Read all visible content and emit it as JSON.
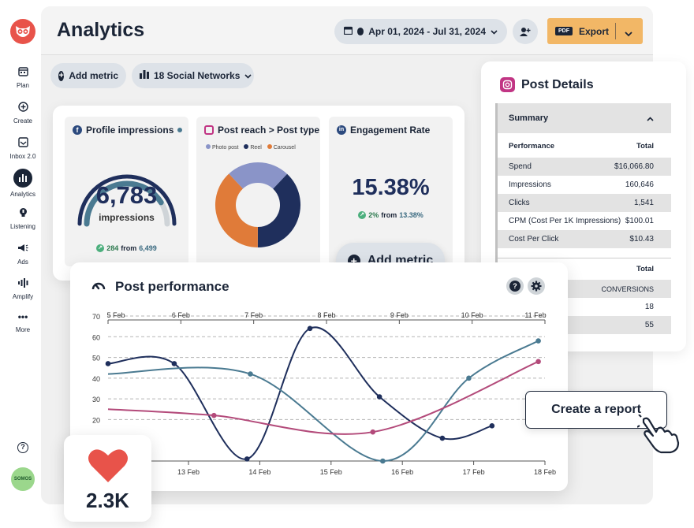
{
  "sidebar": {
    "items": [
      {
        "label": "Plan",
        "icon": "calendar-icon"
      },
      {
        "label": "Create",
        "icon": "plus-circle-icon"
      },
      {
        "label": "Inbox 2.0",
        "icon": "inbox-icon"
      },
      {
        "label": "Analytics",
        "icon": "bar-chart-icon"
      },
      {
        "label": "Listening",
        "icon": "lightbulb-icon"
      },
      {
        "label": "Ads",
        "icon": "megaphone-icon"
      },
      {
        "label": "Amplify",
        "icon": "amplify-icon"
      },
      {
        "label": "More",
        "icon": "more-dots-icon"
      }
    ],
    "avatar": "SOMOS"
  },
  "header": {
    "title": "Analytics",
    "date_range": "Apr 01, 2024 - Jul 31, 2024",
    "export_label": "Export",
    "pdf_badge": "PDF"
  },
  "toolbar": {
    "add_metric": "Add metric",
    "networks": "18 Social Networks"
  },
  "tiles": {
    "impressions": {
      "title": "Profile impressions",
      "value": "6,783",
      "unit": "impressions",
      "delta": "284",
      "from_word": "from",
      "from_value": "6,499",
      "gauge_fraction": 0.82
    },
    "reach": {
      "title": "Post reach > Post type",
      "legend": [
        "Photo post",
        "Reel",
        "Carousel"
      ],
      "colors": [
        "#8a94c8",
        "#1f2f5c",
        "#e07b39"
      ],
      "shares": [
        0.24,
        0.38,
        0.38
      ]
    },
    "engagement": {
      "title": "Engagement Rate",
      "value": "15.38%",
      "delta": "2%",
      "from_word": "from",
      "from_value": "13.38%"
    },
    "add_metric_big": "Add metric"
  },
  "post_details": {
    "title": "Post Details",
    "summary_label": "Summary",
    "col_left": "Performance",
    "col_right": "Total",
    "rows": [
      {
        "label": "Spend",
        "value": "$16,066.80"
      },
      {
        "label": "Impressions",
        "value": "160,646"
      },
      {
        "label": "Clicks",
        "value": "1,541"
      },
      {
        "label": "CPM (Cost Per 1K Impressions)",
        "value": "$100.01"
      },
      {
        "label": "Cost Per Click",
        "value": "$10.43"
      }
    ],
    "col_right2": "Total",
    "conversions_label": "CONVERSIONS",
    "extra_values": [
      "18",
      "55"
    ]
  },
  "post_performance": {
    "title": "Post performance"
  },
  "create_report": "Create a report",
  "likes": "2.3K",
  "chart_data": {
    "type": "line",
    "x_top": [
      "5 Feb",
      "6 Feb",
      "7 Feb",
      "8 Feb",
      "9 Feb",
      "10 Feb",
      "11 Feb"
    ],
    "x_bottom": [
      "13 Feb",
      "14 Feb",
      "15 Feb",
      "16 Feb",
      "17 Feb",
      "18 Feb"
    ],
    "y_ticks": [
      70,
      60,
      50,
      40,
      30,
      20
    ],
    "ylim": [
      0,
      70
    ],
    "grid": true,
    "series": [
      {
        "color": "#1f2f5c",
        "x": [
          0,
          1,
          2.1,
          3.05,
          4.1,
          5.05,
          5.8
        ],
        "y": [
          47,
          47,
          1,
          64,
          31,
          11,
          17
        ]
      },
      {
        "color": "#4a7a91",
        "x": [
          0,
          2.15,
          4.15,
          5.45,
          6.5
        ],
        "y": [
          42,
          42,
          0,
          40,
          58
        ]
      },
      {
        "color": "#b34a7a",
        "x": [
          0,
          1.6,
          4.0,
          6.5
        ],
        "y": [
          25,
          22,
          14,
          48
        ]
      }
    ]
  }
}
